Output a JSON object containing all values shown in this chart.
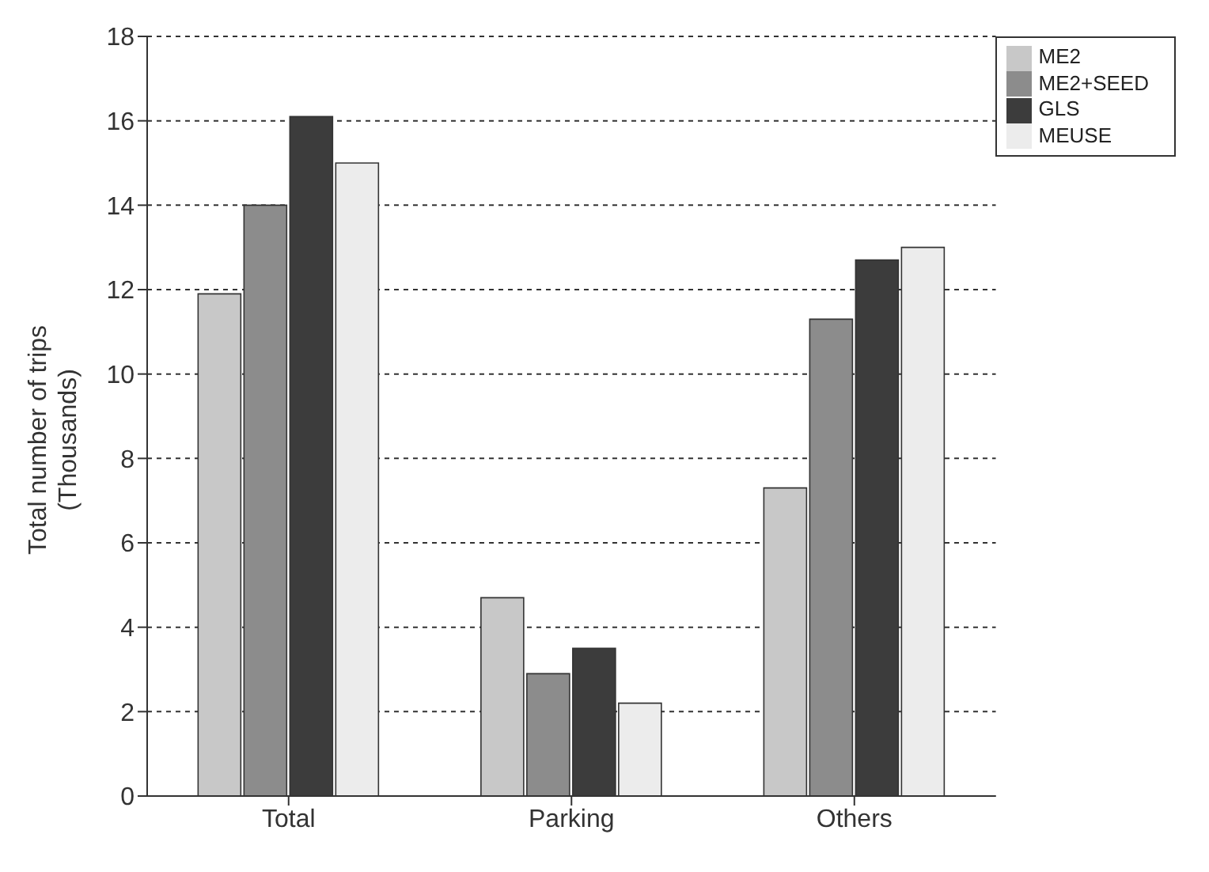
{
  "chart_data": {
    "type": "bar",
    "ylabel": "Total number of trips\n(Thousands)",
    "categories": [
      "Total",
      "Parking",
      "Others"
    ],
    "series": [
      {
        "name": "ME2",
        "color": "#c8c8c8",
        "values": [
          11.9,
          4.7,
          7.3
        ]
      },
      {
        "name": "ME2+SEED",
        "color": "#8c8c8c",
        "values": [
          14,
          2.9,
          11.3
        ]
      },
      {
        "name": "GLS",
        "color": "#3c3c3c",
        "values": [
          16.1,
          3.5,
          12.7
        ]
      },
      {
        "name": "MEUSE",
        "color": "#ececec",
        "values": [
          15,
          2.2,
          13
        ]
      }
    ],
    "ylim": [
      0,
      18
    ],
    "yticks": [
      0,
      2,
      4,
      6,
      8,
      10,
      12,
      14,
      16,
      18
    ],
    "grid": "y",
    "legend": "top right"
  }
}
